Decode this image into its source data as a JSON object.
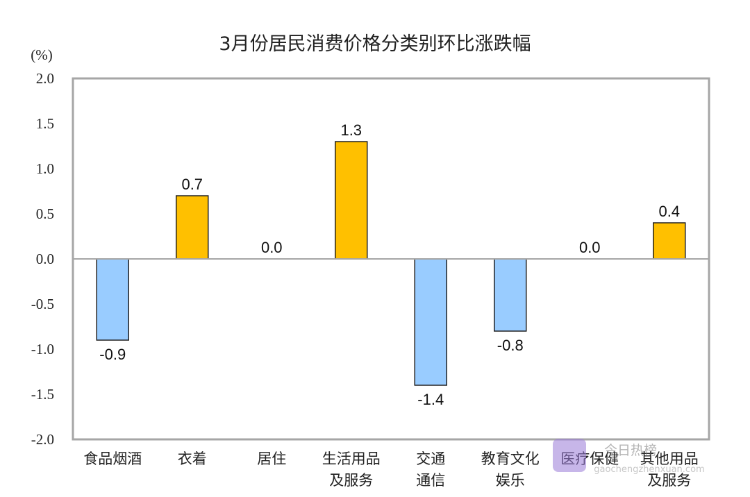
{
  "chart_data": {
    "type": "bar",
    "title": "3月份居民消费价格分类别环比涨跌幅",
    "ylabel": "(%)",
    "xlabel": "",
    "ylim": [
      -2.0,
      2.0
    ],
    "yticks": [
      "2.0",
      "1.5",
      "1.0",
      "0.5",
      "0.0",
      "-0.5",
      "-1.0",
      "-1.5",
      "-2.0"
    ],
    "grid": false,
    "categories": [
      [
        "食品烟酒"
      ],
      [
        "衣着"
      ],
      [
        "居住"
      ],
      [
        "生活用品",
        "及服务"
      ],
      [
        "交通",
        "通信"
      ],
      [
        "教育文化",
        "娱乐"
      ],
      [
        "医疗保健"
      ],
      [
        "其他用品",
        "及服务"
      ]
    ],
    "values": [
      -0.9,
      0.7,
      0.0,
      1.3,
      -1.4,
      -0.8,
      0.0,
      0.4
    ],
    "data_labels": [
      "-0.9",
      "0.7",
      "0.0",
      "1.3",
      "-1.4",
      "-0.8",
      "0.0",
      "0.4"
    ],
    "colors": {
      "positive": "#FFC000",
      "negative": "#99CCFF",
      "axis": "#A6A6A6"
    }
  },
  "watermark": {
    "brand": "今日热榜",
    "url": "gaochengzhenxuan.com"
  }
}
